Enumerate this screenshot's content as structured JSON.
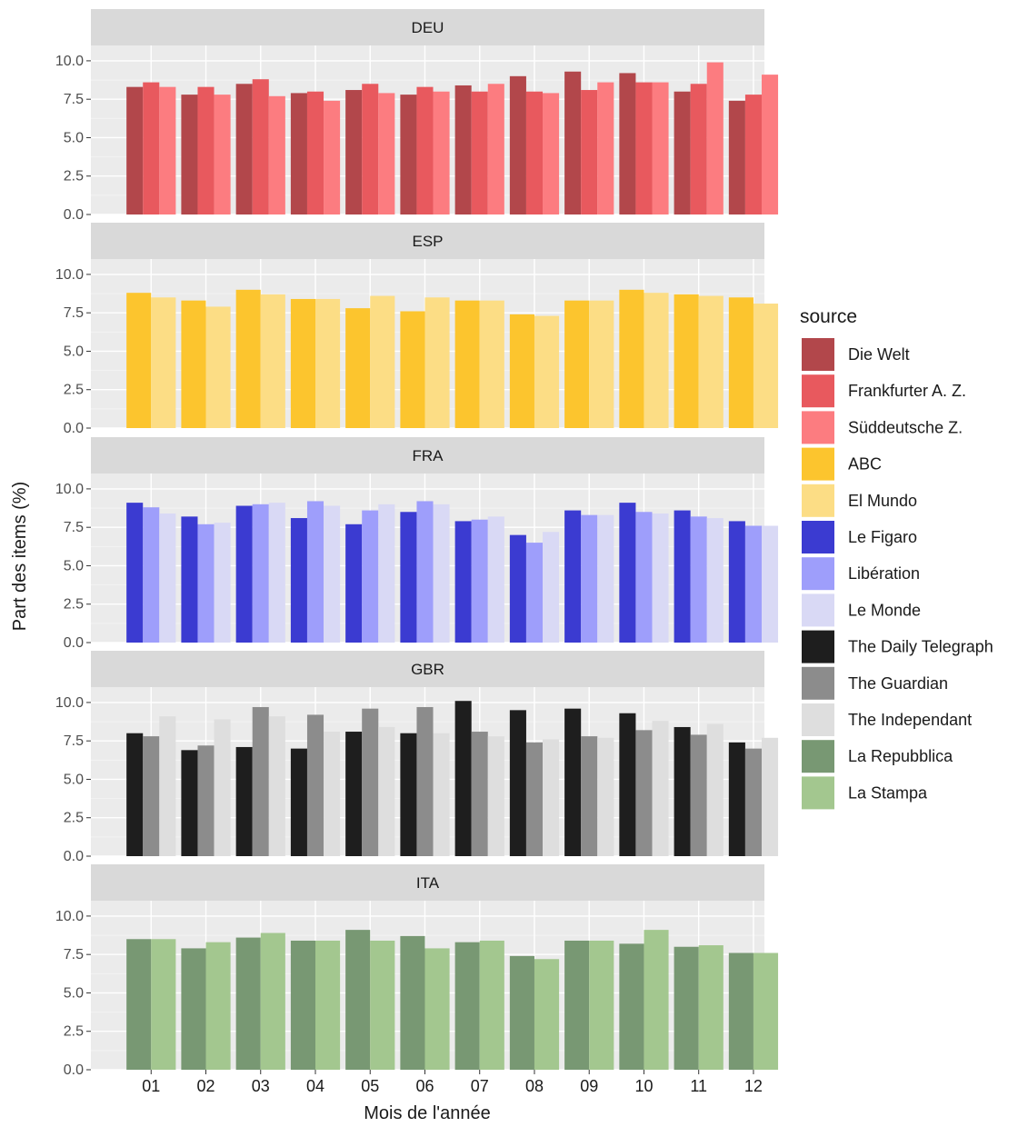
{
  "chart_data": {
    "type": "bar",
    "xlabel": "Mois de l'année",
    "ylabel": "Part des items (%)",
    "ylim": [
      0,
      11
    ],
    "yticks": [
      "0.0",
      "2.5",
      "5.0",
      "7.5",
      "10.0"
    ],
    "categories": [
      "01",
      "02",
      "03",
      "04",
      "05",
      "06",
      "07",
      "08",
      "09",
      "10",
      "11",
      "12"
    ],
    "grid": true,
    "legend": {
      "title": "source",
      "position": "right",
      "entries": [
        {
          "name": "Die Welt",
          "color": "#b2474b"
        },
        {
          "name": "Frankfurter A. Z.",
          "color": "#e8595e"
        },
        {
          "name": "Süddeutsche Z.",
          "color": "#fc7c80"
        },
        {
          "name": "ABC",
          "color": "#fcc52e"
        },
        {
          "name": "El Mundo",
          "color": "#fcdd85"
        },
        {
          "name": "Le Figaro",
          "color": "#3b3bd1"
        },
        {
          "name": "Libération",
          "color": "#9e9efb"
        },
        {
          "name": "Le Monde",
          "color": "#d9d9f5"
        },
        {
          "name": "The Daily Telegraph",
          "color": "#1e1e1e"
        },
        {
          "name": "The Guardian",
          "color": "#8c8c8c"
        },
        {
          "name": "The Independant",
          "color": "#dedede"
        },
        {
          "name": "La Repubblica",
          "color": "#789873"
        },
        {
          "name": "La Stampa",
          "color": "#a3c78f"
        }
      ]
    },
    "panels": [
      {
        "label": "DEU",
        "series": [
          {
            "name": "Die Welt",
            "color": "#b2474b",
            "values": [
              8.3,
              7.8,
              8.5,
              7.9,
              8.1,
              7.8,
              8.4,
              9.0,
              9.3,
              9.2,
              8.0,
              7.4
            ]
          },
          {
            "name": "Frankfurter A. Z.",
            "color": "#e8595e",
            "values": [
              8.6,
              8.3,
              8.8,
              8.0,
              8.5,
              8.3,
              8.0,
              8.0,
              8.1,
              8.6,
              8.5,
              7.8
            ]
          },
          {
            "name": "Süddeutsche Z.",
            "color": "#fc7c80",
            "values": [
              8.3,
              7.8,
              7.7,
              7.4,
              7.9,
              8.0,
              8.5,
              7.9,
              8.6,
              8.6,
              9.9,
              9.1
            ]
          }
        ]
      },
      {
        "label": "ESP",
        "series": [
          {
            "name": "ABC",
            "color": "#fcc52e",
            "values": [
              8.8,
              8.3,
              9.0,
              8.4,
              7.8,
              7.6,
              8.3,
              7.4,
              8.3,
              9.0,
              8.7,
              8.5
            ]
          },
          {
            "name": "El Mundo",
            "color": "#fcdd85",
            "values": [
              8.5,
              7.9,
              8.7,
              8.4,
              8.6,
              8.5,
              8.3,
              7.3,
              8.3,
              8.8,
              8.6,
              8.1
            ]
          }
        ]
      },
      {
        "label": "FRA",
        "series": [
          {
            "name": "Le Figaro",
            "color": "#3b3bd1",
            "values": [
              9.1,
              8.2,
              8.9,
              8.1,
              7.7,
              8.5,
              7.9,
              7.0,
              8.6,
              9.1,
              8.6,
              7.9
            ]
          },
          {
            "name": "Libération",
            "color": "#9e9efb",
            "values": [
              8.8,
              7.7,
              9.0,
              9.2,
              8.6,
              9.2,
              8.0,
              6.5,
              8.3,
              8.5,
              8.2,
              7.6
            ]
          },
          {
            "name": "Le Monde",
            "color": "#d9d9f5",
            "values": [
              8.4,
              7.8,
              9.1,
              8.9,
              9.0,
              9.0,
              8.2,
              7.2,
              8.3,
              8.4,
              8.1,
              7.6
            ]
          }
        ]
      },
      {
        "label": "GBR",
        "series": [
          {
            "name": "The Daily Telegraph",
            "color": "#1e1e1e",
            "values": [
              8.0,
              6.9,
              7.1,
              7.0,
              8.1,
              8.0,
              10.1,
              9.5,
              9.6,
              9.3,
              8.4,
              7.4
            ]
          },
          {
            "name": "The Guardian",
            "color": "#8c8c8c",
            "values": [
              7.8,
              7.2,
              9.7,
              9.2,
              9.6,
              9.7,
              8.1,
              7.4,
              7.8,
              8.2,
              7.9,
              7.0
            ]
          },
          {
            "name": "The Independant",
            "color": "#dedede",
            "values": [
              9.1,
              8.9,
              9.1,
              8.1,
              8.4,
              8.0,
              7.8,
              7.6,
              7.7,
              8.8,
              8.6,
              7.7
            ]
          }
        ]
      },
      {
        "label": "ITA",
        "series": [
          {
            "name": "La Repubblica",
            "color": "#789873",
            "values": [
              8.5,
              7.9,
              8.6,
              8.4,
              9.1,
              8.7,
              8.3,
              7.4,
              8.4,
              8.2,
              8.0,
              7.6
            ]
          },
          {
            "name": "La Stampa",
            "color": "#a3c78f",
            "values": [
              8.5,
              8.3,
              8.9,
              8.4,
              8.4,
              7.9,
              8.4,
              7.2,
              8.4,
              9.1,
              8.1,
              7.6
            ]
          }
        ]
      }
    ]
  }
}
